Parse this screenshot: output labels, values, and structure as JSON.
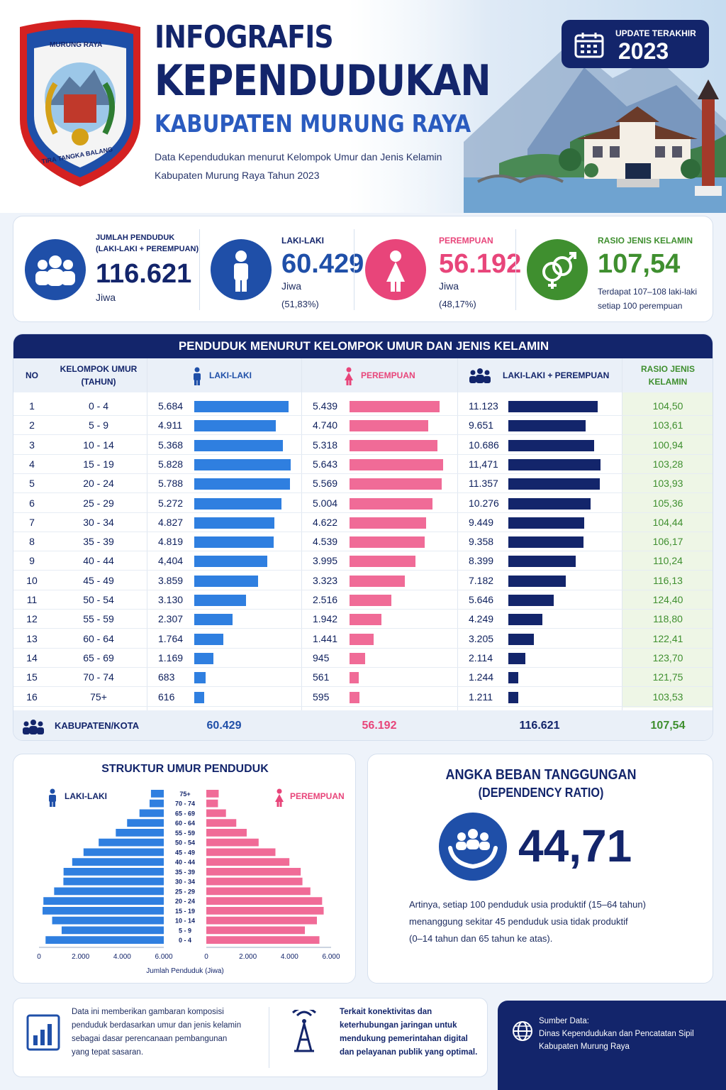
{
  "header": {
    "title_line1": "INFOGRAFIS",
    "title_line2": "KEPENDUDUKAN",
    "title_line3": "KABUPATEN MURUNG RAYA",
    "subtitle_line1": "Data Kependudukan menurut Kelompok Umur dan Jenis Kelamin",
    "subtitle_line2": "Kabupaten Murung Raya Tahun 2023",
    "update_label": "UPDATE TERAKHIR",
    "update_year": "2023",
    "emblem_top_text": "MURUNG RAYA",
    "emblem_bottom_text": "TIRA TANGKA BALANG"
  },
  "summary": {
    "total": {
      "label_line1": "JUMLAH PENDUDUK",
      "label_line2": "(LAKI-LAKI + PEREMPUAN)",
      "value": "116.621",
      "unit": "Jiwa"
    },
    "male": {
      "label": "LAKI-LAKI",
      "value": "60.429",
      "unit": "Jiwa",
      "pct": "(51,83%)"
    },
    "female": {
      "label": "PEREMPUAN",
      "value": "56.192",
      "unit": "Jiwa",
      "pct": "(48,17%)"
    },
    "ratio": {
      "label": "RASIO JENIS KELAMIN",
      "value": "107,54",
      "desc_line1": "Terdapat 107–108 laki-laki",
      "desc_line2": "setiap 100 perempuan"
    }
  },
  "colors": {
    "navy": "#13256b",
    "male": "#2f7fe0",
    "female": "#f06b97",
    "total": "#13256b",
    "green": "#3f8f2f"
  },
  "table": {
    "title": "PENDUDUK MENURUT KELOMPOK UMUR DAN JENIS KELAMIN",
    "headers": {
      "no": "NO",
      "age_line1": "KELOMPOK UMUR",
      "age_line2": "(TAHUN)",
      "male": "LAKI-LAKI",
      "female": "PEREMPUAN",
      "total": "LAKI-LAKI + PEREMPUAN",
      "ratio_line1": "RASIO JENIS",
      "ratio_line2": "KELAMIN"
    },
    "footer": {
      "label": "KABUPATEN/KOTA",
      "male": "60.429",
      "female": "56.192",
      "total": "116.621",
      "ratio": "107,54"
    }
  },
  "chart_data": [
    {
      "type": "table",
      "title": "PENDUDUK MENURUT KELOMPOK UMUR DAN JENIS KELAMIN",
      "columns": [
        "NO",
        "KELOMPOK UMUR (TAHUN)",
        "LAKI-LAKI",
        "PEREMPUAN",
        "LAKI-LAKI + PEREMPUAN",
        "RASIO JENIS KELAMIN"
      ],
      "rows": [
        {
          "no": "1",
          "age": "0 - 4",
          "male": "5.684",
          "female": "5.439",
          "total": "11.123",
          "ratio": "104,50",
          "m": 5684,
          "f": 5439,
          "t": 11123
        },
        {
          "no": "2",
          "age": "5 - 9",
          "male": "4.911",
          "female": "4.740",
          "total": "9.651",
          "ratio": "103,61",
          "m": 4911,
          "f": 4740,
          "t": 9651
        },
        {
          "no": "3",
          "age": "10 - 14",
          "male": "5.368",
          "female": "5.318",
          "total": "10.686",
          "ratio": "100,94",
          "m": 5368,
          "f": 5318,
          "t": 10686
        },
        {
          "no": "4",
          "age": "15 - 19",
          "male": "5.828",
          "female": "5.643",
          "total": "11,471",
          "ratio": "103,28",
          "m": 5828,
          "f": 5643,
          "t": 11471
        },
        {
          "no": "5",
          "age": "20 - 24",
          "male": "5.788",
          "female": "5.569",
          "total": "11.357",
          "ratio": "103,93",
          "m": 5788,
          "f": 5569,
          "t": 11357
        },
        {
          "no": "6",
          "age": "25 - 29",
          "male": "5.272",
          "female": "5.004",
          "total": "10.276",
          "ratio": "105,36",
          "m": 5272,
          "f": 5004,
          "t": 10276
        },
        {
          "no": "7",
          "age": "30 - 34",
          "male": "4.827",
          "female": "4.622",
          "total": "9.449",
          "ratio": "104,44",
          "m": 4827,
          "f": 4622,
          "t": 9449
        },
        {
          "no": "8",
          "age": "35 - 39",
          "male": "4.819",
          "female": "4.539",
          "total": "9.358",
          "ratio": "106,17",
          "m": 4819,
          "f": 4539,
          "t": 9358
        },
        {
          "no": "9",
          "age": "40 - 44",
          "male": "4,404",
          "female": "3.995",
          "total": "8.399",
          "ratio": "110,24",
          "m": 4404,
          "f": 3995,
          "t": 8399
        },
        {
          "no": "10",
          "age": "45 - 49",
          "male": "3.859",
          "female": "3.323",
          "total": "7.182",
          "ratio": "116,13",
          "m": 3859,
          "f": 3323,
          "t": 7182
        },
        {
          "no": "11",
          "age": "50 - 54",
          "male": "3.130",
          "female": "2.516",
          "total": "5.646",
          "ratio": "124,40",
          "m": 3130,
          "f": 2516,
          "t": 5646
        },
        {
          "no": "12",
          "age": "55 - 59",
          "male": "2.307",
          "female": "1.942",
          "total": "4.249",
          "ratio": "118,80",
          "m": 2307,
          "f": 1942,
          "t": 4249
        },
        {
          "no": "13",
          "age": "60 - 64",
          "male": "1.764",
          "female": "1.441",
          "total": "3.205",
          "ratio": "122,41",
          "m": 1764,
          "f": 1441,
          "t": 3205
        },
        {
          "no": "14",
          "age": "65 - 69",
          "male": "1.169",
          "female": "945",
          "total": "2.114",
          "ratio": "123,70",
          "m": 1169,
          "f": 945,
          "t": 2114
        },
        {
          "no": "15",
          "age": "70 - 74",
          "male": "683",
          "female": "561",
          "total": "1.244",
          "ratio": "121,75",
          "m": 683,
          "f": 561,
          "t": 1244
        },
        {
          "no": "16",
          "age": "75+",
          "male": "616",
          "female": "595",
          "total": "1.211",
          "ratio": "103,53",
          "m": 616,
          "f": 595,
          "t": 1211
        }
      ]
    },
    {
      "type": "bar",
      "title": "STRUKTUR UMUR PENDUDUK",
      "orientation": "horizontal-pyramid",
      "categories": [
        "0 - 4",
        "5 - 9",
        "10 - 14",
        "15 - 19",
        "20 - 24",
        "25 - 29",
        "30 - 34",
        "35 - 39",
        "40 - 44",
        "45 - 49",
        "50 - 54",
        "55 - 59",
        "60 - 64",
        "65 - 69",
        "70 - 74",
        "75+"
      ],
      "series": [
        {
          "name": "LAKI-LAKI",
          "values": [
            5684,
            4911,
            5368,
            5828,
            5788,
            5272,
            4827,
            4819,
            4404,
            3859,
            3130,
            2307,
            1764,
            1169,
            683,
            616
          ]
        },
        {
          "name": "PEREMPUAN",
          "values": [
            5439,
            4740,
            5318,
            5643,
            5569,
            5004,
            4622,
            4539,
            3995,
            3323,
            2516,
            1942,
            1441,
            945,
            561,
            595
          ]
        }
      ],
      "xlabel": "Jumlah Penduduk (Jiwa)",
      "xlim": [
        0,
        6000
      ],
      "tick_values": [
        0,
        2000,
        4000,
        6000
      ],
      "tick_labels_left": [
        "6.000",
        "4.000",
        "2.000",
        "0"
      ],
      "tick_labels_right": [
        "0",
        "2.000",
        "4.000",
        "6.000"
      ],
      "legend": "top"
    }
  ],
  "dependency": {
    "title_line1": "ANGKA BEBAN TANGGUNGAN",
    "title_line2": "(DEPENDENCY RATIO)",
    "value": "44,71",
    "desc_line1": "Artinya, setiap 100 penduduk usia produktif (15–64 tahun)",
    "desc_line2": "menanggung sekitar 45 penduduk usia tidak produktif",
    "desc_line3": "(0–14 tahun dan 65 tahun ke atas)."
  },
  "footer": {
    "note1_line1": "Data ini memberikan gambaran komposisi",
    "note1_line2": "penduduk berdasarkan umur dan jenis kelamin",
    "note1_line3": "sebagai dasar perencanaan pembangunan",
    "note1_line4": "yang tepat sasaran.",
    "note2_line1": "Terkait konektivitas dan",
    "note2_line2": "keterhubungan jaringan untuk",
    "note2_line3": "mendukung pemerintahan digital",
    "note2_line4": "dan pelayanan publik yang optimal.",
    "source_label": "Sumber Data:",
    "source_line1": "Dinas Kependudukan dan Pencatatan Sipil",
    "source_line2": "Kabupaten Murung Raya"
  },
  "icons": {
    "calendar": "calendar-icon",
    "people": "people-icon",
    "male": "male-icon",
    "female": "female-icon",
    "gender": "gender-symbol-icon",
    "hands": "hands-people-icon",
    "chart": "bar-chart-icon",
    "tower": "signal-tower-icon",
    "globe": "globe-icon"
  }
}
